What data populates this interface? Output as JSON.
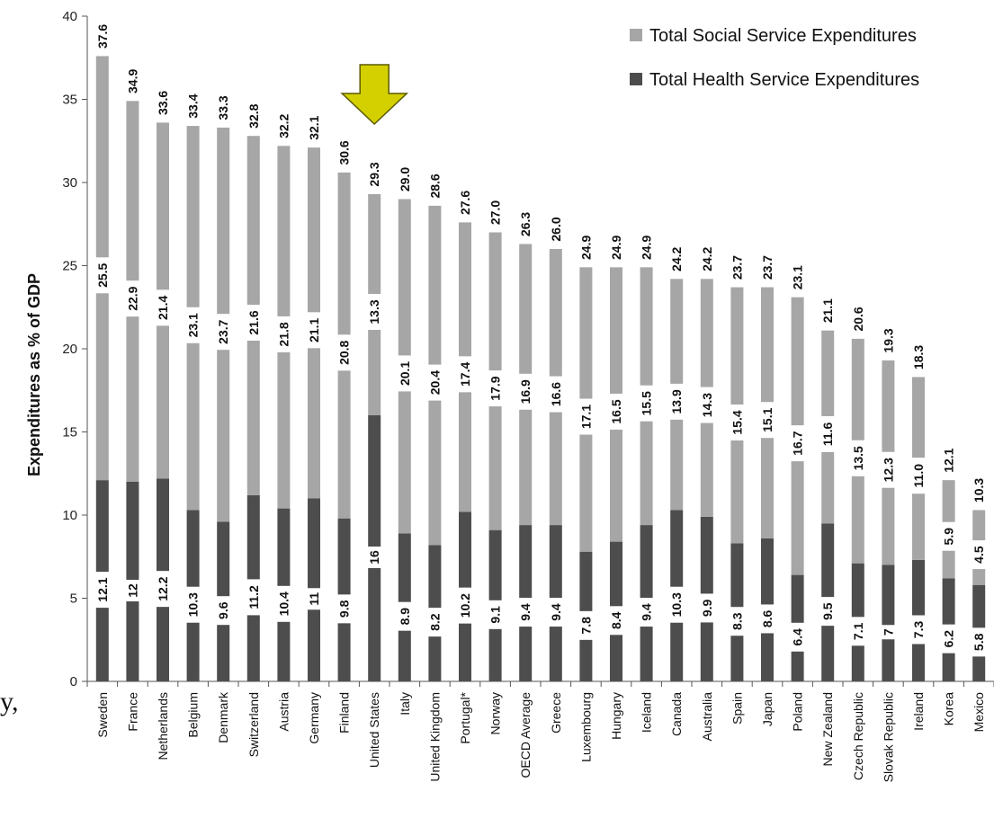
{
  "chart_data": {
    "type": "bar",
    "stacked": true,
    "ylabel": "Expenditures as % of GDP",
    "ylim": [
      0,
      40
    ],
    "yticks": [
      0,
      5,
      10,
      15,
      20,
      25,
      30,
      35,
      40
    ],
    "grid": false,
    "legend_position": "top-right",
    "highlight_category": "United States",
    "categories": [
      "Sweden",
      "France",
      "Netherlands",
      "Belgium",
      "Denmark",
      "Switzerland",
      "Austria",
      "Germany",
      "Finland",
      "United States",
      "Italy",
      "United Kingdom",
      "Portugal*",
      "Norway",
      "OECD Average",
      "Greece",
      "Luxembourg",
      "Hungary",
      "Iceland",
      "Canada",
      "Australia",
      "Spain",
      "Japan",
      "Poland",
      "New Zealand",
      "Czech Republic",
      "Slovak Republic",
      "Ireland",
      "Korea",
      "Mexico"
    ],
    "series": [
      {
        "name": "Total Health Service Expenditures",
        "color": "#4d4d4d",
        "values": [
          12.1,
          12,
          12.2,
          10.3,
          9.6,
          11.2,
          10.4,
          11,
          9.8,
          16,
          8.9,
          8.2,
          10.2,
          9.1,
          9.4,
          9.4,
          7.8,
          8.4,
          9.4,
          10.3,
          9.9,
          8.3,
          8.6,
          6.4,
          9.5,
          7.1,
          7,
          7.3,
          6.2,
          5.8
        ],
        "labels": [
          "12.1",
          "12",
          "12.2",
          "10.3",
          "9.6",
          "11.2",
          "10.4",
          "11",
          "9.8",
          "16",
          "8.9",
          "8.2",
          "10.2",
          "9.1",
          "9.4",
          "9.4",
          "7.8",
          "8.4",
          "9.4",
          "10.3",
          "9.9",
          "8.3",
          "8.6",
          "6.4",
          "9.5",
          "7.1",
          "7",
          "7.3",
          "6.2",
          "5.8"
        ]
      },
      {
        "name": "Total Social Service Expenditures",
        "color": "#a6a6a6",
        "values": [
          25.5,
          22.9,
          21.4,
          23.1,
          23.7,
          21.6,
          21.8,
          21.1,
          20.8,
          13.3,
          20.1,
          20.4,
          17.4,
          17.9,
          16.9,
          16.6,
          17.1,
          16.5,
          15.5,
          13.9,
          14.3,
          15.4,
          15.1,
          16.7,
          11.6,
          13.5,
          12.3,
          11.0,
          5.9,
          4.5
        ],
        "labels": [
          "25.5",
          "22.9",
          "21.4",
          "23.1",
          "23.7",
          "21.6",
          "21.8",
          "21.1",
          "20.8",
          "13.3",
          "20.1",
          "20.4",
          "17.4",
          "17.9",
          "16.9",
          "16.6",
          "17.1",
          "16.5",
          "15.5",
          "13.9",
          "14.3",
          "15.4",
          "15.1",
          "16.7",
          "11.6",
          "13.5",
          "12.3",
          "11.0",
          "5.9",
          "4.5"
        ]
      }
    ],
    "totals": [
      "37.6",
      "34.9",
      "33.6",
      "33.4",
      "33.3",
      "32.8",
      "32.2",
      "32.1",
      "30.6",
      "29.3",
      "29.0",
      "28.6",
      "27.6",
      "27.0",
      "26.3",
      "26.0",
      "24.9",
      "24.9",
      "24.9",
      "24.2",
      "24.2",
      "23.7",
      "23.7",
      "23.1",
      "21.1",
      "20.6",
      "19.3",
      "18.3",
      "12.1",
      "10.3"
    ],
    "legend": [
      "Total Social Service Expenditures",
      "Total Health Service Expenditures"
    ]
  },
  "stray_text": "y,",
  "colors": {
    "health": "#4d4d4d",
    "social": "#a6a6a6",
    "arrow_fill": "#d4d000",
    "arrow_stroke": "#5a5a00",
    "axis": "#555555"
  }
}
